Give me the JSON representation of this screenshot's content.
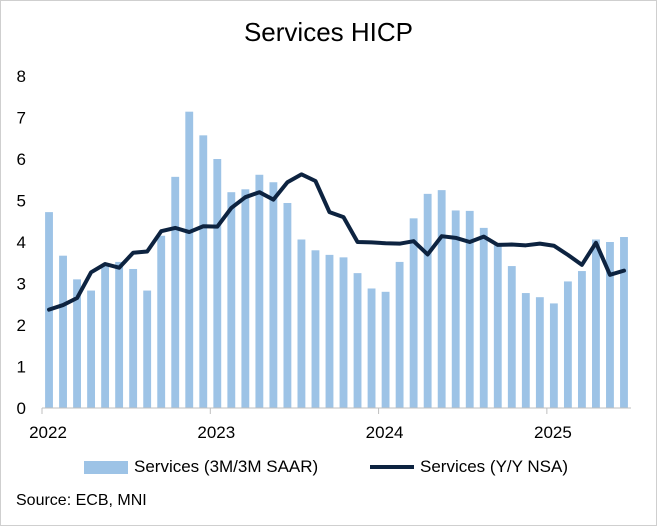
{
  "chart_data": {
    "type": "bar+line",
    "title": "Services HICP",
    "xlabel": "",
    "ylabel": "",
    "ylim": [
      0,
      8
    ],
    "yticks": [
      "0",
      "1",
      "2",
      "3",
      "4",
      "5",
      "6",
      "7",
      "8"
    ],
    "xtick_labels": [
      "2022",
      "2023",
      "2024",
      "2025"
    ],
    "months": [
      "2022-01",
      "2022-02",
      "2022-03",
      "2022-04",
      "2022-05",
      "2022-06",
      "2022-07",
      "2022-08",
      "2022-09",
      "2022-10",
      "2022-11",
      "2022-12",
      "2023-01",
      "2023-02",
      "2023-03",
      "2023-04",
      "2023-05",
      "2023-06",
      "2023-07",
      "2023-08",
      "2023-09",
      "2023-10",
      "2023-11",
      "2023-12",
      "2024-01",
      "2024-02",
      "2024-03",
      "2024-04",
      "2024-05",
      "2024-06",
      "2024-07",
      "2024-08",
      "2024-09",
      "2024-10",
      "2024-11",
      "2024-12",
      "2025-01",
      "2025-02",
      "2025-03",
      "2025-04",
      "2025-05",
      "2025-06"
    ],
    "series": [
      {
        "name": "Services (3M/3M SAAR)",
        "kind": "bar",
        "color": "#9dc3e6",
        "values": [
          4.72,
          3.67,
          3.1,
          2.83,
          3.44,
          3.52,
          3.35,
          2.83,
          4.15,
          5.57,
          7.14,
          6.57,
          6.0,
          5.2,
          5.27,
          5.62,
          5.44,
          4.94,
          4.06,
          3.8,
          3.69,
          3.63,
          3.25,
          2.88,
          2.8,
          3.52,
          4.57,
          5.16,
          5.25,
          4.76,
          4.75,
          4.34,
          3.93,
          3.42,
          2.77,
          2.67,
          2.52,
          3.05,
          3.3,
          4.06,
          4.0,
          4.12
        ]
      },
      {
        "name": "Services (Y/Y NSA)",
        "kind": "line",
        "color": "#0d2340",
        "values": [
          2.37,
          2.48,
          2.65,
          3.27,
          3.47,
          3.38,
          3.74,
          3.77,
          4.26,
          4.34,
          4.24,
          4.38,
          4.37,
          4.82,
          5.08,
          5.2,
          5.02,
          5.44,
          5.63,
          5.47,
          4.72,
          4.6,
          4.0,
          3.99,
          3.97,
          3.96,
          4.02,
          3.7,
          4.14,
          4.1,
          4.0,
          4.13,
          3.93,
          3.94,
          3.92,
          3.96,
          3.91,
          3.69,
          3.45,
          3.98,
          3.21,
          3.31
        ]
      }
    ]
  },
  "source": "Source: ECB, MNI"
}
